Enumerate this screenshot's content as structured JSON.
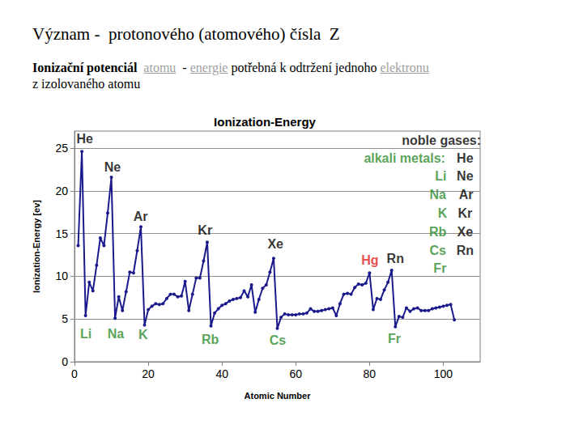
{
  "slide": {
    "heading": "Význam -  protonového (atomového) čísla  Z",
    "text_segments": [
      {
        "text": "Ionizační potenciál",
        "style": "bold"
      },
      {
        "text": "  ",
        "style": "plain"
      },
      {
        "text": "atomu",
        "style": "link"
      },
      {
        "text": "  - ",
        "style": "plain"
      },
      {
        "text": "energie",
        "style": "link"
      },
      {
        "text": " potřebná k odtržení jednoho ",
        "style": "plain"
      },
      {
        "text": "elektronu",
        "style": "link"
      },
      {
        "text": "\nz izolovaného atomu",
        "style": "plain"
      }
    ]
  },
  "chart_data": {
    "type": "line",
    "title": "Ionization-Energy",
    "x_label": "Atomic Number",
    "y_label": "Ionization-Energy [ev]",
    "x": [
      1,
      2,
      3,
      4,
      5,
      6,
      7,
      8,
      9,
      10,
      11,
      12,
      13,
      14,
      15,
      16,
      17,
      18,
      19,
      20,
      21,
      22,
      23,
      24,
      25,
      26,
      27,
      28,
      29,
      30,
      31,
      32,
      33,
      34,
      35,
      36,
      37,
      38,
      39,
      40,
      41,
      42,
      43,
      44,
      45,
      46,
      47,
      48,
      49,
      50,
      51,
      52,
      53,
      54,
      55,
      56,
      57,
      58,
      59,
      60,
      61,
      62,
      63,
      64,
      65,
      66,
      67,
      68,
      69,
      70,
      71,
      72,
      73,
      74,
      75,
      76,
      77,
      78,
      79,
      80,
      81,
      82,
      83,
      84,
      85,
      86,
      87,
      88,
      89,
      90,
      91,
      92,
      93,
      94,
      95,
      96,
      97,
      98,
      99,
      100,
      101,
      102,
      103
    ],
    "values": [
      13.6,
      24.6,
      5.4,
      9.3,
      8.3,
      11.3,
      14.5,
      13.6,
      17.4,
      21.6,
      5.1,
      7.6,
      6.0,
      8.2,
      10.5,
      10.4,
      13.0,
      15.8,
      4.3,
      6.1,
      6.5,
      6.8,
      6.7,
      6.8,
      7.4,
      7.9,
      7.9,
      7.6,
      7.7,
      9.4,
      6.0,
      7.9,
      9.8,
      9.8,
      11.8,
      14.0,
      4.2,
      5.7,
      6.2,
      6.6,
      6.8,
      7.1,
      7.3,
      7.4,
      7.5,
      8.3,
      7.6,
      9.0,
      5.8,
      7.3,
      8.6,
      9.0,
      10.5,
      12.1,
      3.9,
      5.2,
      5.6,
      5.5,
      5.5,
      5.5,
      5.6,
      5.6,
      5.7,
      6.2,
      5.9,
      5.9,
      6.0,
      6.1,
      6.2,
      6.3,
      5.4,
      6.8,
      7.9,
      8.0,
      7.9,
      8.7,
      9.1,
      9.0,
      9.2,
      10.4,
      6.1,
      7.4,
      7.3,
      8.4,
      9.3,
      10.7,
      4.1,
      5.3,
      5.2,
      6.3,
      5.9,
      6.2,
      6.3,
      6.0,
      6.0,
      6.0,
      6.2,
      6.3,
      6.4,
      6.5,
      6.6,
      6.7,
      4.9
    ],
    "color": "#1a1a8c",
    "marker": "circle",
    "grid": true,
    "xlim": [
      0,
      110
    ],
    "xticks": [
      0,
      20,
      40,
      60,
      80,
      100
    ],
    "ylim": [
      0,
      27
    ],
    "yticks": [
      0,
      5,
      10,
      15,
      20,
      25
    ],
    "annotations": [
      {
        "text": "He",
        "x": 2.8,
        "y": 26.1,
        "color": "#000000"
      },
      {
        "text": "Ne",
        "x": 10.3,
        "y": 22.8,
        "color": "#000000"
      },
      {
        "text": "Ar",
        "x": 17.9,
        "y": 17.0,
        "color": "#000000"
      },
      {
        "text": "Kr",
        "x": 35.4,
        "y": 15.4,
        "color": "#000000"
      },
      {
        "text": "Xe",
        "x": 54.5,
        "y": 13.8,
        "color": "#000000"
      },
      {
        "text": "Hg",
        "x": 80.1,
        "y": 11.9,
        "color": "#e02020"
      },
      {
        "text": "Rn",
        "x": 87.0,
        "y": 12.1,
        "color": "#000000"
      },
      {
        "text": "Li",
        "x": 3.1,
        "y": 3.3,
        "color": "#2e8b2e"
      },
      {
        "text": "Na",
        "x": 11.2,
        "y": 3.3,
        "color": "#2e8b2e"
      },
      {
        "text": "K",
        "x": 18.6,
        "y": 3.2,
        "color": "#2e8b2e"
      },
      {
        "text": "Rb",
        "x": 36.8,
        "y": 2.6,
        "color": "#2e8b2e"
      },
      {
        "text": "Cs",
        "x": 55.1,
        "y": 2.5,
        "color": "#2e8b2e"
      },
      {
        "text": "Fr",
        "x": 86.7,
        "y": 2.7,
        "color": "#2e8b2e"
      },
      {
        "text": "noble gases:",
        "x": 99.5,
        "y": 25.9,
        "color": "#000000"
      },
      {
        "text": "alkali metals:",
        "x": 89.5,
        "y": 23.8,
        "color": "#2e8b2e"
      },
      {
        "text": "He",
        "x": 105.9,
        "y": 23.8,
        "color": "#000000"
      },
      {
        "text": "Li",
        "x": 99.3,
        "y": 21.7,
        "color": "#2e8b2e"
      },
      {
        "text": "Ne",
        "x": 105.9,
        "y": 21.7,
        "color": "#000000"
      },
      {
        "text": "Na",
        "x": 98.5,
        "y": 19.6,
        "color": "#2e8b2e"
      },
      {
        "text": "Ar",
        "x": 106.2,
        "y": 19.6,
        "color": "#000000"
      },
      {
        "text": "K",
        "x": 99.8,
        "y": 17.4,
        "color": "#2e8b2e"
      },
      {
        "text": "Kr",
        "x": 105.9,
        "y": 17.4,
        "color": "#000000"
      },
      {
        "text": "Rb",
        "x": 98.5,
        "y": 15.2,
        "color": "#2e8b2e"
      },
      {
        "text": "Xe",
        "x": 105.9,
        "y": 15.2,
        "color": "#000000"
      },
      {
        "text": "Cs",
        "x": 98.5,
        "y": 13.0,
        "color": "#2e8b2e"
      },
      {
        "text": "Rn",
        "x": 105.9,
        "y": 13.0,
        "color": "#000000"
      },
      {
        "text": "Fr",
        "x": 99.1,
        "y": 10.9,
        "color": "#2e8b2e"
      }
    ]
  }
}
